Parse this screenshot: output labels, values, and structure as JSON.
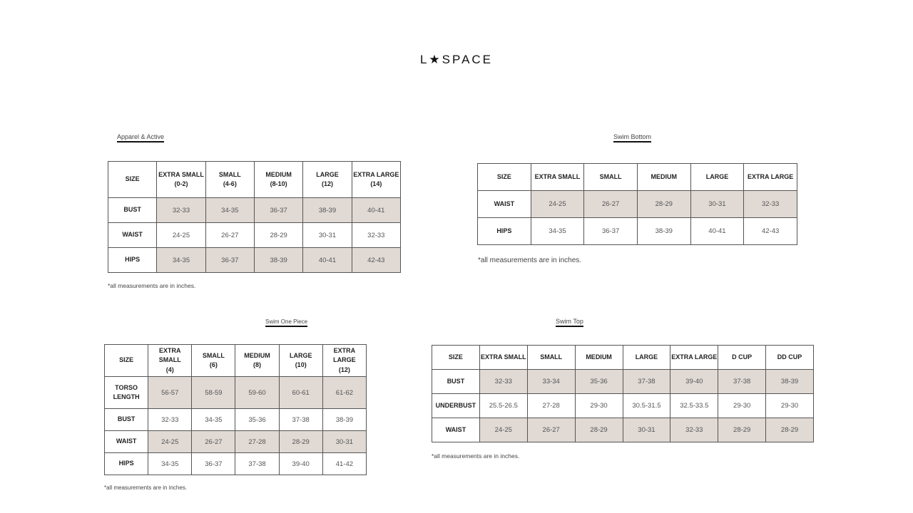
{
  "logo": "L★SPACE",
  "shade_color": "#e0d9d4",
  "tables": {
    "apparel": {
      "title": "Apparel & Active",
      "headers": [
        "SIZE",
        "EXTRA SMALL\n(0-2)",
        "SMALL\n(4-6)",
        "MEDIUM\n(8-10)",
        "LARGE\n(12)",
        "EXTRA LARGE\n(14)"
      ],
      "rows": [
        [
          "BUST",
          "32-33",
          "34-35",
          "36-37",
          "38-39",
          "40-41"
        ],
        [
          "WAIST",
          "24-25",
          "26-27",
          "28-29",
          "30-31",
          "32-33"
        ],
        [
          "HIPS",
          "34-35",
          "36-37",
          "38-39",
          "40-41",
          "42-43"
        ]
      ],
      "note": "*all measurements are in inches."
    },
    "swim_bottom": {
      "title": "Swim Bottom",
      "headers": [
        "SIZE",
        "EXTRA SMALL",
        "SMALL",
        "MEDIUM",
        "LARGE",
        "EXTRA LARGE"
      ],
      "rows": [
        [
          "WAIST",
          "24-25",
          "26-27",
          "28-29",
          "30-31",
          "32-33"
        ],
        [
          "HIPS",
          "34-35",
          "36-37",
          "38-39",
          "40-41",
          "42-43"
        ]
      ],
      "note": "*all measurements are in inches."
    },
    "swim_one_piece": {
      "title": "Swim One Piece",
      "headers": [
        "SIZE",
        "EXTRA SMALL\n(4)",
        "SMALL\n(6)",
        "MEDIUM\n(8)",
        "LARGE\n(10)",
        "EXTRA LARGE\n(12)"
      ],
      "rows": [
        [
          "TORSO\nLENGTH",
          "56-57",
          "58-59",
          "59-60",
          "60-61",
          "61-62"
        ],
        [
          "BUST",
          "32-33",
          "34-35",
          "35-36",
          "37-38",
          "38-39"
        ],
        [
          "WAIST",
          "24-25",
          "26-27",
          "27-28",
          "28-29",
          "30-31"
        ],
        [
          "HIPS",
          "34-35",
          "36-37",
          "37-38",
          "39-40",
          "41-42"
        ]
      ],
      "note": "*all measurements are in inches."
    },
    "swim_top": {
      "title": "Swim Top",
      "headers": [
        "SIZE",
        "EXTRA SMALL",
        "SMALL",
        "MEDIUM",
        "LARGE",
        "EXTRA LARGE",
        "D CUP",
        "DD CUP"
      ],
      "rows": [
        [
          "BUST",
          "32-33",
          "33-34",
          "35-36",
          "37-38",
          "39-40",
          "37-38",
          "38-39"
        ],
        [
          "UNDERBUST",
          "25.5-26.5",
          "27-28",
          "29-30",
          "30.5-31.5",
          "32.5-33.5",
          "29-30",
          "29-30"
        ],
        [
          "WAIST",
          "24-25",
          "26-27",
          "28-29",
          "30-31",
          "32-33",
          "28-29",
          "28-29"
        ]
      ],
      "note": "*all measurements are in inches."
    }
  }
}
